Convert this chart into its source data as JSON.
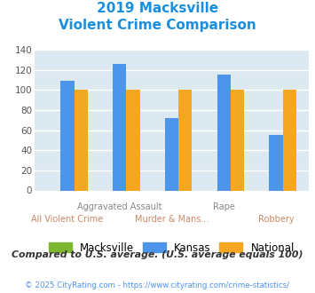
{
  "title_line1": "2019 Macksville",
  "title_line2": "Violent Crime Comparison",
  "categories": [
    "All Violent Crime",
    "Aggravated Assault",
    "Murder & Mans...",
    "Rape",
    "Robbery"
  ],
  "macksville": [
    0,
    0,
    0,
    0,
    0
  ],
  "kansas": [
    109,
    126,
    72,
    115,
    55
  ],
  "national": [
    100,
    100,
    100,
    100,
    100
  ],
  "bar_colors": {
    "macksville": "#7db731",
    "kansas": "#4d94eb",
    "national": "#f5a623"
  },
  "ylim": [
    0,
    140
  ],
  "yticks": [
    0,
    20,
    40,
    60,
    80,
    100,
    120,
    140
  ],
  "title_color": "#1a8fe0",
  "background_color": "#dce9f0",
  "grid_color": "#ffffff",
  "footer_text": "Compared to U.S. average. (U.S. average equals 100)",
  "footer_color": "#333333",
  "copyright_text": "© 2025 CityRating.com - https://www.cityrating.com/crime-statistics/",
  "copyright_color": "#4d94eb",
  "legend_labels": [
    "Macksville",
    "Kansas",
    "National"
  ],
  "top_xlabels": [
    "",
    "Aggravated Assault",
    "",
    "Rape",
    ""
  ],
  "bot_xlabels": [
    "All Violent Crime",
    "",
    "Murder & Mans...",
    "",
    "Robbery"
  ],
  "top_xlabel_color": "#888888",
  "bot_xlabel_color": "#cc8866"
}
